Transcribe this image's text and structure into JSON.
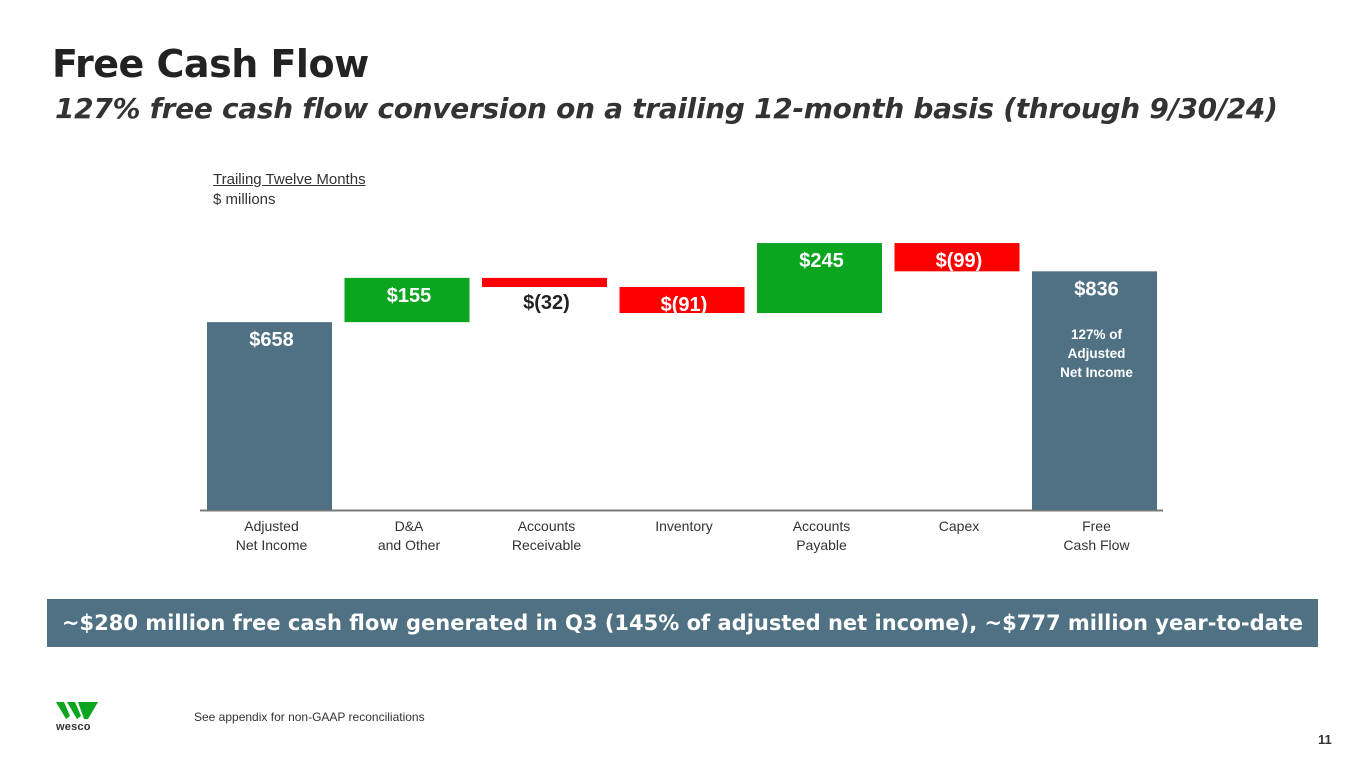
{
  "header": {
    "title": "Free Cash Flow",
    "subtitle": "127% free cash flow conversion on a trailing 12-month basis (through 9/30/24)"
  },
  "basis": {
    "period": "Trailing Twelve Months",
    "unit": "$ millions"
  },
  "chart_data": {
    "type": "waterfall",
    "categories": [
      [
        "Adjusted",
        "Net Income"
      ],
      [
        "D&A",
        "and Other"
      ],
      [
        "Accounts",
        "Receivable"
      ],
      [
        "Inventory"
      ],
      [
        "Accounts",
        "Payable"
      ],
      [
        "Capex"
      ],
      [
        "Free",
        "Cash Flow"
      ]
    ],
    "values": [
      658,
      155,
      -32,
      -91,
      245,
      -99,
      836
    ],
    "kinds": [
      "total",
      "increase",
      "decrease",
      "decrease",
      "increase",
      "decrease",
      "total"
    ],
    "data_labels": [
      "$658",
      "$155",
      "$(32)",
      "$(91)",
      "$245",
      "$(99)",
      "$836"
    ],
    "annotation": {
      "category_index": 6,
      "lines": [
        "127% of",
        "Adjusted",
        "Net Income"
      ]
    },
    "colors": {
      "total": "#4f7183",
      "increase": "#0ca51f",
      "decrease": "#ff0000"
    },
    "baseline": 0
  },
  "banner": {
    "text": "~$280 million free cash flow generated in Q3 (145% of adjusted net income), ~$777 million year-to-date"
  },
  "footer": {
    "footnote": "See appendix for non-GAAP reconciliations",
    "page_number": "11",
    "logo_text": "wesco",
    "logo_icon": "wesco-w-logo-icon",
    "logo_color": "#0ca51f"
  }
}
